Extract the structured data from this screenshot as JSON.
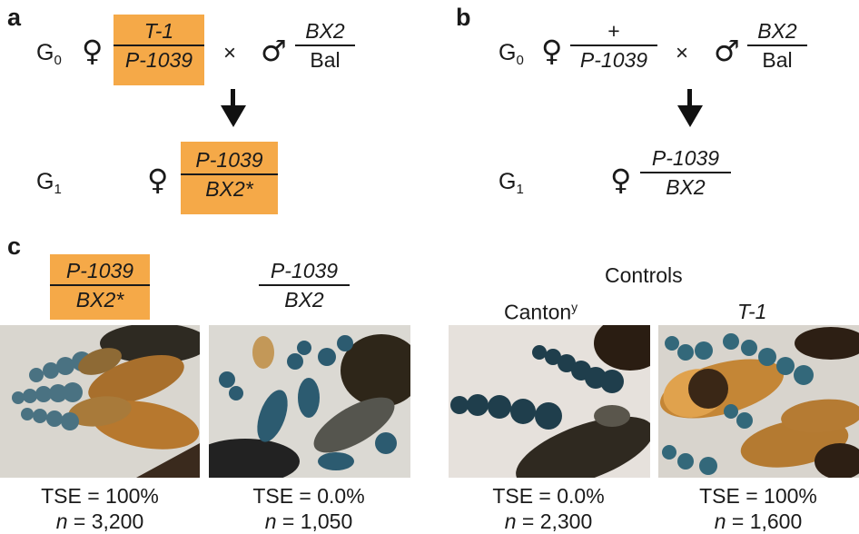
{
  "panels": {
    "a": {
      "letter": "a",
      "g0": "G",
      "g0_sub": "0",
      "female_sym": "♀",
      "male_sym": "♂",
      "times": "×",
      "female_num": "T-1",
      "female_den": "P-1039",
      "male_num": "BX2",
      "male_den": "Bal",
      "g1": "G",
      "g1_sub": "1",
      "g1_female_sym": "♀",
      "g1_num": "P-1039",
      "g1_den": "BX2*"
    },
    "b": {
      "letter": "b",
      "g0": "G",
      "g0_sub": "0",
      "female_sym": "♀",
      "male_sym": "♂",
      "times": "×",
      "female_num": "+",
      "female_den": "P-1039",
      "male_num": "BX2",
      "male_den": "Bal",
      "g1": "G",
      "g1_sub": "1",
      "g1_female_sym": "♀",
      "g1_num": "P-1039",
      "g1_den": "BX2"
    },
    "c": {
      "letter": "c",
      "controls_label": "Controls",
      "columns": [
        {
          "genotype_num": "P-1039",
          "genotype_den": "BX2*",
          "tse": "TSE = 100%",
          "n_label": "n",
          "n_value": " = 3,200"
        },
        {
          "genotype_num": "P-1039",
          "genotype_den": "BX2",
          "tse": "TSE = 0.0%",
          "n_label": "n",
          "n_value": " = 1,050"
        },
        {
          "label": "Canton",
          "label_sup": "y",
          "tse": "TSE = 0.0%",
          "n_label": "n",
          "n_value": " = 2,300"
        },
        {
          "label": "T-1",
          "tse": "TSE = 100%",
          "n_label": "n",
          "n_value": " = 1,600"
        }
      ]
    }
  },
  "colors": {
    "highlight": "#f5a948",
    "stain_blue": "#2f5f73",
    "egg_chamber_orange": "#b7772c",
    "background_tissue": "#d9d6cf"
  }
}
